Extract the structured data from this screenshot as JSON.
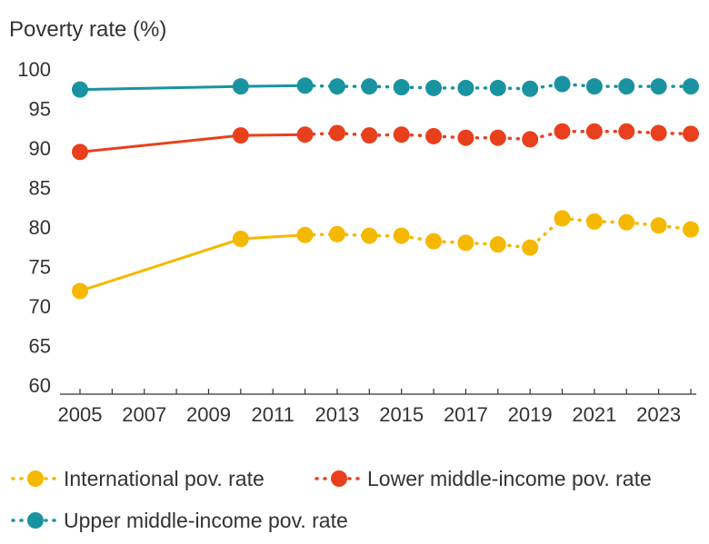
{
  "chart_data": {
    "type": "line",
    "title": "",
    "xlabel": "",
    "ylabel": "Poverty rate (%)",
    "ylim": [
      60,
      100
    ],
    "yticks": [
      60,
      65,
      70,
      75,
      80,
      85,
      90,
      95,
      100
    ],
    "xlim": [
      2005,
      2024
    ],
    "xticks": [
      2005,
      2007,
      2009,
      2011,
      2013,
      2015,
      2017,
      2019,
      2021,
      2023
    ],
    "grid": false,
    "legend": "bottom",
    "observed_through": 2012,
    "series": [
      {
        "name": "International pov. rate",
        "color": "#F5B800",
        "points": [
          [
            2005,
            71.9
          ],
          [
            2010,
            78.5
          ],
          [
            2012,
            79.0
          ],
          [
            2013,
            79.1
          ],
          [
            2014,
            78.9
          ],
          [
            2015,
            78.9
          ],
          [
            2016,
            78.2
          ],
          [
            2017,
            78.0
          ],
          [
            2018,
            77.8
          ],
          [
            2019,
            77.4
          ],
          [
            2020,
            81.1
          ],
          [
            2021,
            80.7
          ],
          [
            2022,
            80.6
          ],
          [
            2023,
            80.2
          ],
          [
            2024,
            79.7
          ]
        ]
      },
      {
        "name": "Lower middle-income pov. rate",
        "color": "#E8401C",
        "points": [
          [
            2005,
            89.5
          ],
          [
            2010,
            91.6
          ],
          [
            2012,
            91.7
          ],
          [
            2013,
            91.9
          ],
          [
            2014,
            91.6
          ],
          [
            2015,
            91.7
          ],
          [
            2016,
            91.5
          ],
          [
            2017,
            91.3
          ],
          [
            2018,
            91.3
          ],
          [
            2019,
            91.1
          ],
          [
            2020,
            92.1
          ],
          [
            2021,
            92.1
          ],
          [
            2022,
            92.1
          ],
          [
            2023,
            91.9
          ],
          [
            2024,
            91.8
          ]
        ]
      },
      {
        "name": "Upper middle-income pov. rate",
        "color": "#1993A0",
        "points": [
          [
            2005,
            97.4
          ],
          [
            2010,
            97.8
          ],
          [
            2012,
            97.9
          ],
          [
            2013,
            97.8
          ],
          [
            2014,
            97.8
          ],
          [
            2015,
            97.7
          ],
          [
            2016,
            97.6
          ],
          [
            2017,
            97.6
          ],
          [
            2018,
            97.6
          ],
          [
            2019,
            97.5
          ],
          [
            2020,
            98.1
          ],
          [
            2021,
            97.8
          ],
          [
            2022,
            97.8
          ],
          [
            2023,
            97.8
          ],
          [
            2024,
            97.8
          ]
        ]
      }
    ]
  }
}
